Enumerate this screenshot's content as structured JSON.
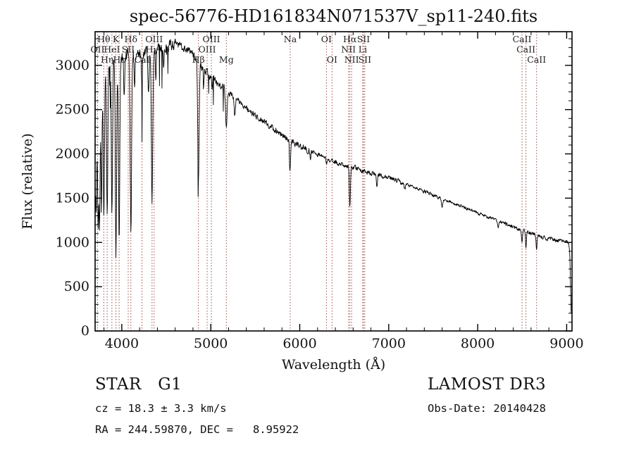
{
  "footer": {
    "class_label": "STAR   G1",
    "cz": "cz = 18.3 ± 3.3 km/s",
    "ra_dec": "RA = 244.59870, DEC =   8.95922",
    "survey": "LAMOST DR3",
    "obs_date": "Obs-Date: 20140428"
  },
  "chart_data": {
    "type": "line",
    "title": "spec-56776-HD161834N071537V_sp11-240.fits",
    "xlabel": "Wavelength (Å)",
    "ylabel": "Flux (relative)",
    "xlim": [
      3700,
      9060
    ],
    "ylim": [
      0,
      3380
    ],
    "xticks": [
      4000,
      5000,
      6000,
      7000,
      8000,
      9000
    ],
    "yticks": [
      0,
      500,
      1000,
      1500,
      2000,
      2500,
      3000
    ],
    "x_minor_step": 200,
    "y_minor_step": 100,
    "grid": false,
    "line_color": "#000000",
    "marker_color": "#9e4b4b",
    "marker_label_color": "#1f1f1f",
    "spectral_lines": [
      {
        "label": "OII",
        "wavelength": 3727,
        "row": 2
      },
      {
        "label": "Hθ",
        "wavelength": 3798,
        "row": 1
      },
      {
        "label": "Hη",
        "wavelength": 3835,
        "row": 3
      },
      {
        "label": "HeI",
        "wavelength": 3889,
        "row": 2
      },
      {
        "label": "K",
        "wavelength": 3934,
        "row": 1
      },
      {
        "label": "Hε",
        "wavelength": 3970,
        "row": 3
      },
      {
        "label": "SII",
        "wavelength": 4072,
        "row": 2
      },
      {
        "label": "Hδ",
        "wavelength": 4102,
        "row": 1
      },
      {
        "label": "CaI",
        "wavelength": 4227,
        "row": 3
      },
      {
        "label": "Hγ",
        "wavelength": 4340,
        "row": 2
      },
      {
        "label": "OIII",
        "wavelength": 4363,
        "row": 1
      },
      {
        "label": "Hβ",
        "wavelength": 4861,
        "row": 3
      },
      {
        "label": "OIII",
        "wavelength": 4959,
        "row": 2
      },
      {
        "label": "OIII",
        "wavelength": 5007,
        "row": 1
      },
      {
        "label": "Mg",
        "wavelength": 5175,
        "row": 3
      },
      {
        "label": "Na",
        "wavelength": 5893,
        "row": 1
      },
      {
        "label": "OI",
        "wavelength": 6300,
        "row": 1
      },
      {
        "label": "OI",
        "wavelength": 6363,
        "row": 3
      },
      {
        "label": "NII",
        "wavelength": 6548,
        "row": 2
      },
      {
        "label": "Hα",
        "wavelength": 6563,
        "row": 1
      },
      {
        "label": "NII",
        "wavelength": 6583,
        "row": 3
      },
      {
        "label": "Li",
        "wavelength": 6708,
        "row": 2
      },
      {
        "label": "SII",
        "wavelength": 6716,
        "row": 1
      },
      {
        "label": "SII",
        "wavelength": 6731,
        "row": 3
      },
      {
        "label": "CaII",
        "wavelength": 8498,
        "row": 1
      },
      {
        "label": "CaII",
        "wavelength": 8542,
        "row": 2
      },
      {
        "label": "CaII",
        "wavelength": 8662,
        "row": 3
      }
    ],
    "continuum": [
      [
        3700,
        2350
      ],
      [
        3720,
        2520
      ],
      [
        3750,
        2700
      ],
      [
        3780,
        2820
      ],
      [
        3820,
        2890
      ],
      [
        3860,
        2940
      ],
      [
        3900,
        2980
      ],
      [
        3950,
        3010
      ],
      [
        4000,
        3030
      ],
      [
        4050,
        3070
      ],
      [
        4100,
        3090
      ],
      [
        4150,
        3120
      ],
      [
        4200,
        3140
      ],
      [
        4300,
        3160
      ],
      [
        4400,
        3185
      ],
      [
        4500,
        3215
      ],
      [
        4600,
        3240
      ],
      [
        4700,
        3205
      ],
      [
        4800,
        3130
      ],
      [
        4900,
        2990
      ],
      [
        5000,
        2880
      ],
      [
        5100,
        2790
      ],
      [
        5200,
        2690
      ],
      [
        5300,
        2610
      ],
      [
        5400,
        2510
      ],
      [
        5500,
        2430
      ],
      [
        5600,
        2360
      ],
      [
        5700,
        2290
      ],
      [
        5800,
        2220
      ],
      [
        5900,
        2140
      ],
      [
        6000,
        2090
      ],
      [
        6100,
        2040
      ],
      [
        6200,
        1995
      ],
      [
        6300,
        1950
      ],
      [
        6400,
        1905
      ],
      [
        6500,
        1875
      ],
      [
        6600,
        1845
      ],
      [
        6700,
        1815
      ],
      [
        6800,
        1785
      ],
      [
        6900,
        1758
      ],
      [
        7000,
        1732
      ],
      [
        7100,
        1695
      ],
      [
        7200,
        1655
      ],
      [
        7300,
        1615
      ],
      [
        7400,
        1575
      ],
      [
        7500,
        1535
      ],
      [
        7600,
        1495
      ],
      [
        7700,
        1455
      ],
      [
        7800,
        1415
      ],
      [
        7900,
        1375
      ],
      [
        8000,
        1335
      ],
      [
        8100,
        1295
      ],
      [
        8200,
        1255
      ],
      [
        8300,
        1215
      ],
      [
        8400,
        1175
      ],
      [
        8500,
        1135
      ],
      [
        8600,
        1102
      ],
      [
        8700,
        1072
      ],
      [
        8800,
        1045
      ],
      [
        8900,
        1022
      ],
      [
        9000,
        1010
      ],
      [
        9022,
        1000
      ],
      [
        9036,
        860
      ],
      [
        9045,
        430
      ],
      [
        9052,
        130
      ]
    ],
    "absorption_features": [
      {
        "wavelength": 3712,
        "depth": 1150,
        "sigma": 7
      },
      {
        "wavelength": 3734,
        "depth": 1350,
        "sigma": 6
      },
      {
        "wavelength": 3750,
        "depth": 1450,
        "sigma": 6
      },
      {
        "wavelength": 3771,
        "depth": 1350,
        "sigma": 6
      },
      {
        "wavelength": 3798,
        "depth": 1500,
        "sigma": 7
      },
      {
        "wavelength": 3835,
        "depth": 1650,
        "sigma": 7
      },
      {
        "wavelength": 3889,
        "depth": 1750,
        "sigma": 7
      },
      {
        "wavelength": 3934,
        "depth": 2150,
        "sigma": 7
      },
      {
        "wavelength": 3970,
        "depth": 2000,
        "sigma": 7
      },
      {
        "wavelength": 4026,
        "depth": 450,
        "sigma": 5
      },
      {
        "wavelength": 4102,
        "depth": 1950,
        "sigma": 8
      },
      {
        "wavelength": 4144,
        "depth": 300,
        "sigma": 5
      },
      {
        "wavelength": 4227,
        "depth": 350,
        "sigma": 5
      },
      {
        "wavelength": 4300,
        "depth": 450,
        "sigma": 7
      },
      {
        "wavelength": 4340,
        "depth": 1700,
        "sigma": 8
      },
      {
        "wavelength": 4383,
        "depth": 300,
        "sigma": 5
      },
      {
        "wavelength": 4471,
        "depth": 250,
        "sigma": 5
      },
      {
        "wavelength": 4861,
        "depth": 1320,
        "sigma": 8
      },
      {
        "wavelength": 4921,
        "depth": 200,
        "sigma": 5
      },
      {
        "wavelength": 5015,
        "depth": 180,
        "sigma": 5
      },
      {
        "wavelength": 5175,
        "depth": 430,
        "sigma": 9
      },
      {
        "wavelength": 5270,
        "depth": 200,
        "sigma": 6
      },
      {
        "wavelength": 5890,
        "depth": 360,
        "sigma": 6
      },
      {
        "wavelength": 6122,
        "depth": 90,
        "sigma": 5
      },
      {
        "wavelength": 6300,
        "depth": 70,
        "sigma": 5
      },
      {
        "wavelength": 6563,
        "depth": 430,
        "sigma": 6
      },
      {
        "wavelength": 6867,
        "depth": 110,
        "sigma": 7
      },
      {
        "wavelength": 7180,
        "depth": 60,
        "sigma": 8
      },
      {
        "wavelength": 7600,
        "depth": 90,
        "sigma": 7
      },
      {
        "wavelength": 8230,
        "depth": 60,
        "sigma": 6
      },
      {
        "wavelength": 8498,
        "depth": 150,
        "sigma": 5
      },
      {
        "wavelength": 8542,
        "depth": 190,
        "sigma": 5
      },
      {
        "wavelength": 8662,
        "depth": 170,
        "sigma": 5
      }
    ],
    "noise": {
      "seed": 7
    },
    "sampling_step": 3.5
  }
}
